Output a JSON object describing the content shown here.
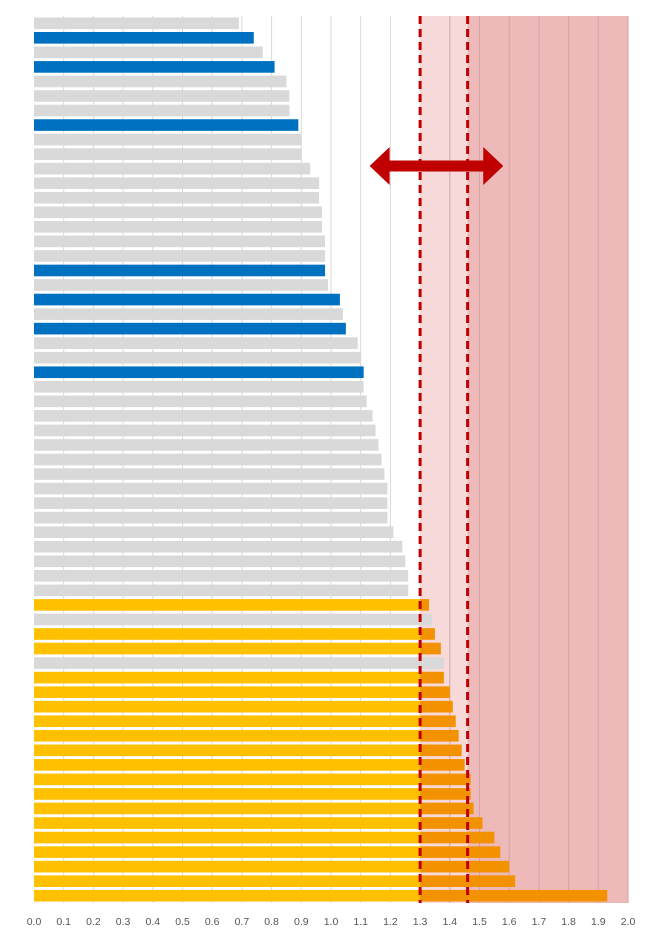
{
  "chart_data": {
    "type": "bar",
    "orientation": "horizontal",
    "title": "",
    "xlabel": "",
    "ylabel": "",
    "xlim": [
      0.0,
      2.0
    ],
    "x_ticks": [
      "0.0",
      "0.1",
      "0.2",
      "0.3",
      "0.4",
      "0.5",
      "0.6",
      "0.7",
      "0.8",
      "0.9",
      "1.0",
      "1.1",
      "1.2",
      "1.3",
      "1.4",
      "1.5",
      "1.6",
      "1.7",
      "1.8",
      "1.9",
      "2.0"
    ],
    "grid": "vertical",
    "legend": "none",
    "values": [
      0.69,
      0.74,
      0.77,
      0.81,
      0.85,
      0.86,
      0.86,
      0.89,
      0.9,
      0.9,
      0.93,
      0.96,
      0.96,
      0.97,
      0.97,
      0.98,
      0.98,
      0.98,
      0.99,
      1.03,
      1.04,
      1.05,
      1.09,
      1.1,
      1.11,
      1.11,
      1.12,
      1.14,
      1.15,
      1.16,
      1.17,
      1.18,
      1.19,
      1.19,
      1.19,
      1.21,
      1.24,
      1.25,
      1.26,
      1.26,
      1.33,
      1.34,
      1.35,
      1.37,
      1.38,
      1.38,
      1.4,
      1.41,
      1.42,
      1.43,
      1.44,
      1.45,
      1.47,
      1.47,
      1.48,
      1.51,
      1.55,
      1.57,
      1.6,
      1.62,
      1.93
    ],
    "highlight_blue": [
      1,
      3,
      7,
      17,
      19,
      21,
      24
    ],
    "highlight_yellow": [
      40,
      42,
      43,
      45,
      46,
      47,
      48,
      49,
      50,
      51,
      52,
      53,
      54,
      55,
      56,
      57,
      58,
      59,
      60
    ],
    "reference_lines": [
      1.3,
      1.46
    ],
    "shaded_bands": [
      {
        "from": 1.3,
        "to": 1.46,
        "color": "#f7d9d9"
      },
      {
        "from": 1.46,
        "to": 2.0,
        "color": "#edb9b9"
      }
    ],
    "range_arrow": {
      "from": 1.13,
      "to": 1.58
    },
    "colors": {
      "bar_default": "#d9d9d9",
      "bar_blue": "#0070c0",
      "bar_yellow": "#ffc000",
      "bar_orange": "#f39200",
      "reference_line": "#c00000",
      "arrow": "#c00000",
      "grid": "#d9d9d9"
    }
  }
}
